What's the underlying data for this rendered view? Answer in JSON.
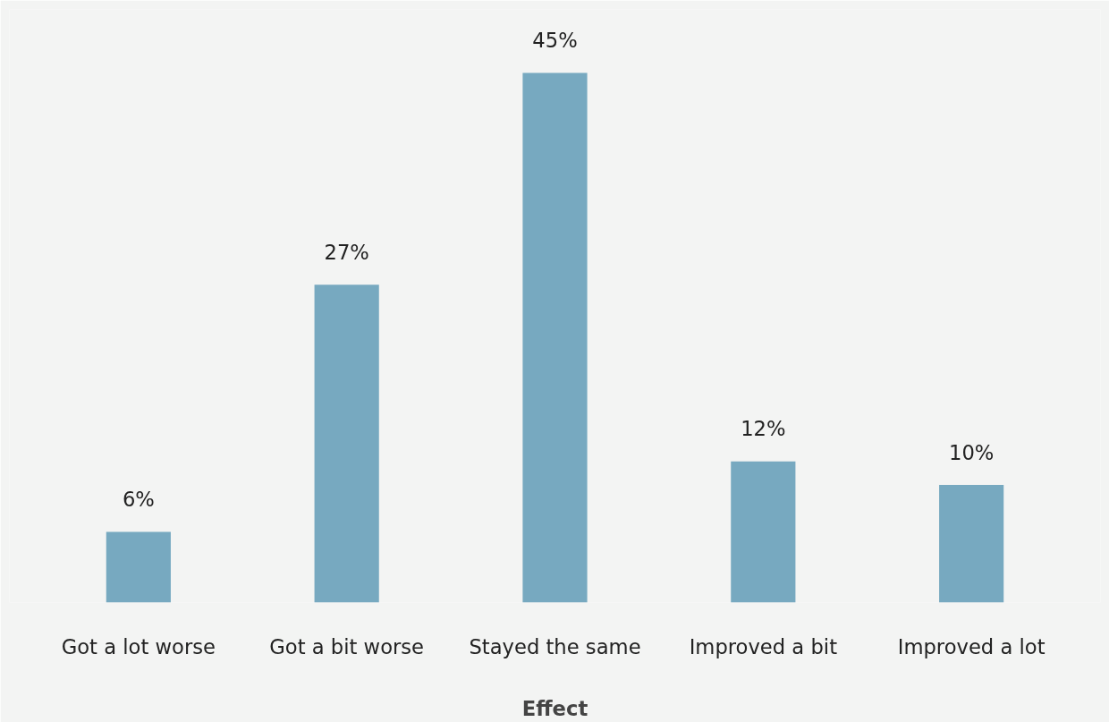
{
  "chart_data": {
    "type": "bar",
    "xlabel": "Effect",
    "categories": [
      "Got a lot worse",
      "Got a bit worse",
      "Stayed the same",
      "Improved a bit",
      "Improved a lot"
    ],
    "values": [
      6,
      27,
      45,
      12,
      10
    ],
    "value_labels": [
      "6%",
      "27%",
      "45%",
      "12%",
      "10%"
    ],
    "color": "#77a9c0",
    "grid": false
  }
}
